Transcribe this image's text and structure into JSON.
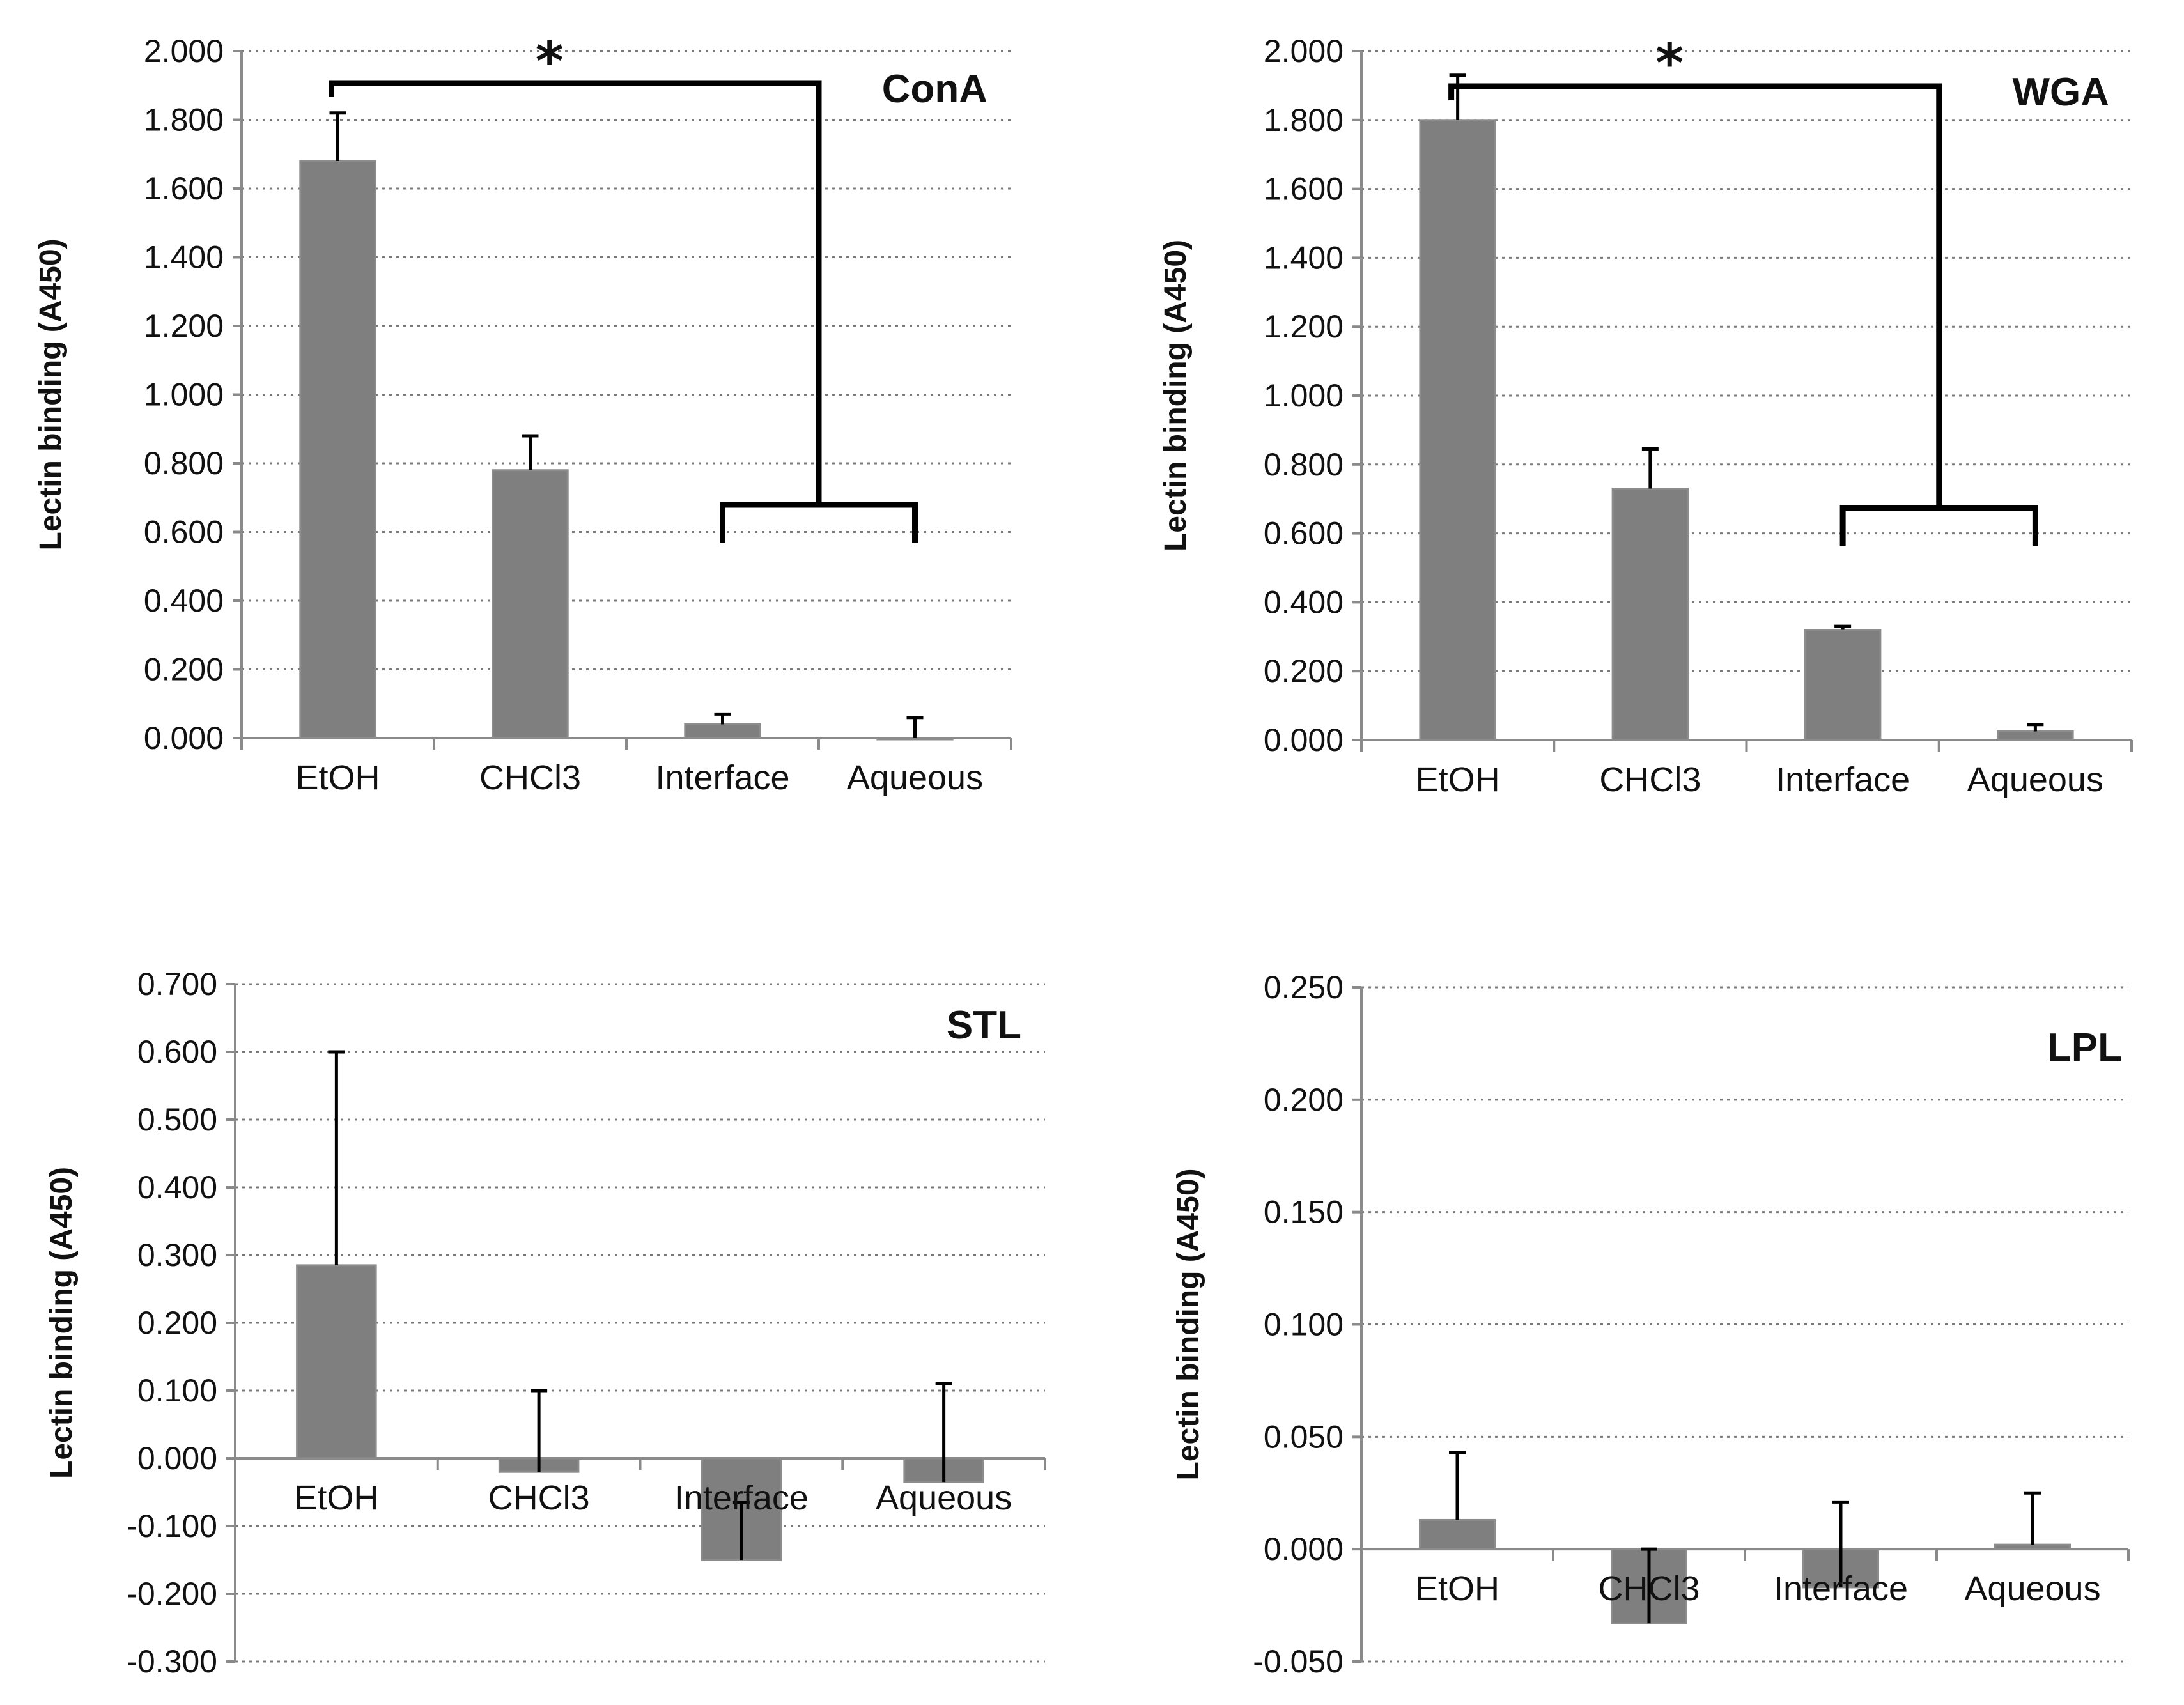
{
  "bar_color": "#7f7f7f",
  "chart_data": [
    {
      "type": "bar",
      "title": "ConA",
      "xlabel": "",
      "ylabel": "Lectin binding (A450)",
      "categories": [
        "EtOH",
        "CHCl3",
        "Interface",
        "Aqueous"
      ],
      "values": [
        1.68,
        0.78,
        0.04,
        0.0
      ],
      "errors": [
        0.14,
        0.1,
        0.03,
        0.06
      ],
      "ylim": [
        0,
        2
      ],
      "yticks": [
        0,
        0.2,
        0.4,
        0.6,
        0.8,
        1.0,
        1.2,
        1.4,
        1.6,
        1.8,
        2.0
      ],
      "ytick_labels": [
        "0.000",
        "0.200",
        "0.400",
        "0.600",
        "0.800",
        "1.000",
        "1.200",
        "1.400",
        "1.600",
        "1.800",
        "2.000"
      ],
      "grid": true,
      "significance": {
        "label": "*",
        "from": "EtOH",
        "to": [
          "Interface",
          "Aqueous"
        ]
      }
    },
    {
      "type": "bar",
      "title": "WGA",
      "xlabel": "",
      "ylabel": "Lectin binding (A450)",
      "categories": [
        "EtOH",
        "CHCl3",
        "Interface",
        "Aqueous"
      ],
      "values": [
        1.8,
        0.73,
        0.32,
        0.025
      ],
      "errors": [
        0.13,
        0.115,
        0.01,
        0.02
      ],
      "ylim": [
        0,
        2
      ],
      "yticks": [
        0,
        0.2,
        0.4,
        0.6,
        0.8,
        1.0,
        1.2,
        1.4,
        1.6,
        1.8,
        2.0
      ],
      "ytick_labels": [
        "0.000",
        "0.200",
        "0.400",
        "0.600",
        "0.800",
        "1.000",
        "1.200",
        "1.400",
        "1.600",
        "1.800",
        "2.000"
      ],
      "grid": true,
      "significance": {
        "label": "*",
        "from": "EtOH",
        "to": [
          "Interface",
          "Aqueous"
        ]
      }
    },
    {
      "type": "bar",
      "title": "STL",
      "xlabel": "",
      "ylabel": "Lectin binding (A450)",
      "categories": [
        "EtOH",
        "CHCl3",
        "Interface",
        "Aqueous"
      ],
      "values": [
        0.285,
        -0.02,
        -0.15,
        -0.035
      ],
      "errors": [
        0.315,
        0.12,
        0.085,
        0.145
      ],
      "ylim": [
        -0.3,
        0.7
      ],
      "yticks": [
        -0.3,
        -0.2,
        -0.1,
        0,
        0.1,
        0.2,
        0.3,
        0.4,
        0.5,
        0.6,
        0.7
      ],
      "ytick_labels": [
        "-0.300",
        "-0.200",
        "-0.100",
        "0.000",
        "0.100",
        "0.200",
        "0.300",
        "0.400",
        "0.500",
        "0.600",
        "0.700"
      ],
      "grid": true
    },
    {
      "type": "bar",
      "title": "LPL",
      "xlabel": "",
      "ylabel": "Lectin binding (A450)",
      "categories": [
        "EtOH",
        "CHCl3",
        "Interface",
        "Aqueous"
      ],
      "values": [
        0.013,
        -0.033,
        -0.017,
        0.002
      ],
      "errors": [
        0.03,
        0.033,
        0.038,
        0.023
      ],
      "ylim": [
        -0.05,
        0.25
      ],
      "yticks": [
        -0.05,
        0,
        0.05,
        0.1,
        0.15,
        0.2,
        0.25
      ],
      "ytick_labels": [
        "-0.050",
        "0.000",
        "0.050",
        "0.100",
        "0.150",
        "0.200",
        "0.250"
      ],
      "grid": true
    }
  ]
}
